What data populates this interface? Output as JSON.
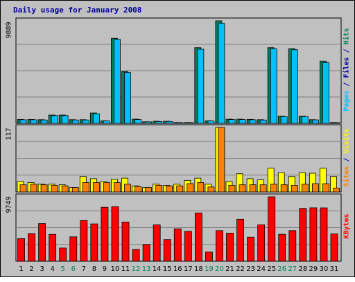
{
  "chart_data": {
    "type": "bar",
    "title": "Daily usage for January 2008",
    "categories": [
      "1",
      "2",
      "3",
      "4",
      "5",
      "6",
      "7",
      "8",
      "9",
      "10",
      "11",
      "12",
      "13",
      "14",
      "15",
      "16",
      "17",
      "18",
      "19",
      "20",
      "21",
      "22",
      "23",
      "24",
      "25",
      "26",
      "27",
      "28",
      "29",
      "30",
      "31"
    ],
    "weekend_days": [
      "5",
      "6",
      "12",
      "13",
      "19",
      "20",
      "26",
      "27"
    ],
    "panels": [
      {
        "id": "hits-files-pages",
        "ymax_label": "9889",
        "ylim": [
          0,
          9889
        ],
        "side_label": [
          {
            "text": "Pages",
            "color": "#00c0ff"
          },
          {
            "text": " / ",
            "color": "#0000a0"
          },
          {
            "text": "Files",
            "color": "#0000a0"
          },
          {
            "text": " / ",
            "color": "#0000a0"
          },
          {
            "text": "Hits",
            "color": "#00805c"
          }
        ],
        "series": [
          {
            "name": "Hits",
            "color": "#008060",
            "values": [
              370,
              370,
              350,
              800,
              800,
              350,
              350,
              1000,
              250,
              8200,
              5000,
              400,
              150,
              200,
              200,
              80,
              80,
              7300,
              250,
              9889,
              400,
              400,
              380,
              350,
              7300,
              700,
              7200,
              700,
              350,
              6000,
              80
            ]
          },
          {
            "name": "Files",
            "color": "#00c0ff",
            "values": [
              340,
              340,
              320,
              750,
              750,
              320,
              320,
              920,
              230,
              8100,
              4900,
              360,
              140,
              170,
              180,
              70,
              60,
              7150,
              230,
              9650,
              360,
              360,
              340,
              320,
              7200,
              650,
              7100,
              650,
              330,
              5850,
              60
            ]
          }
        ]
      },
      {
        "id": "visits-sites",
        "ymax_label": "117",
        "ylim": [
          0,
          117
        ],
        "side_label": [
          {
            "text": "Sites",
            "color": "#ff8000"
          },
          {
            "text": " / ",
            "color": "#0000a0"
          },
          {
            "text": "Visits",
            "color": "#ffff00"
          }
        ],
        "series": [
          {
            "name": "Visits",
            "color": "#ffff00",
            "values": [
              19,
              17,
              14,
              14,
              13,
              8,
              28,
              24,
              19,
              23,
              25,
              11,
              8,
              14,
              12,
              14,
              21,
              25,
              14,
              117,
              19,
              33,
              24,
              22,
              43,
              35,
              28,
              35,
              34,
              43,
              28
            ]
          },
          {
            "name": "Sites",
            "color": "#ff8000",
            "values": [
              13,
              14,
              13,
              12,
              11,
              8,
              17,
              17,
              17,
              17,
              14,
              10,
              8,
              12,
              11,
              11,
              15,
              17,
              9,
              117,
              12,
              13,
              13,
              13,
              14,
              13,
              12,
              14,
              15,
              15,
              7
            ]
          }
        ]
      },
      {
        "id": "kbytes",
        "ymax_label": "9749",
        "ylim": [
          0,
          9749
        ],
        "side_label": [
          {
            "text": "KBytes",
            "color": "#ff0000"
          }
        ],
        "series": [
          {
            "name": "KBytes",
            "color": "#ff0000",
            "values": [
              3420,
              4180,
              5700,
              4060,
              2000,
              3690,
              6160,
              5650,
              8160,
              8250,
              5930,
              1780,
              2530,
              5500,
              3280,
              4900,
              4520,
              7300,
              1380,
              4630,
              4250,
              6360,
              3640,
              5500,
              9749,
              4080,
              4630,
              7990,
              8080,
              8070,
              4130
            ]
          }
        ]
      }
    ]
  }
}
